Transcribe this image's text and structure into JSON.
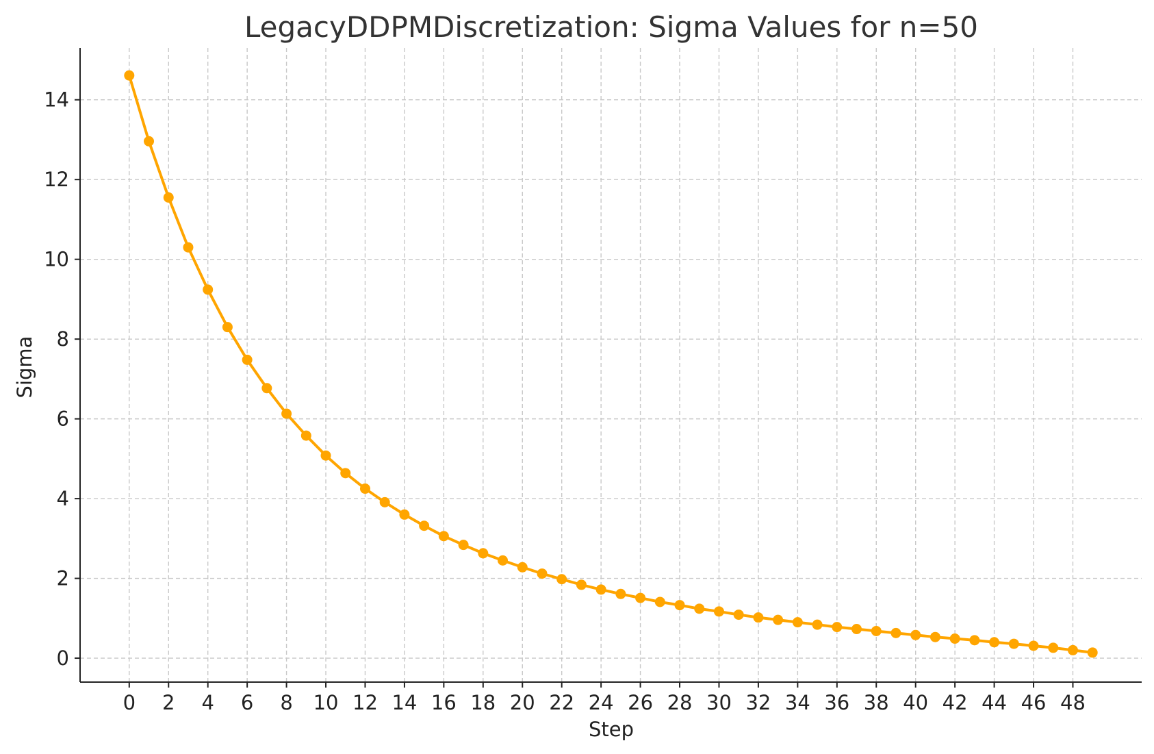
{
  "chart_data": {
    "type": "line",
    "title": "LegacyDDPMDiscretization: Sigma Values for n=50",
    "xlabel": "Step",
    "ylabel": "Sigma",
    "xlim": [
      -2.5,
      51.5
    ],
    "ylim": [
      -0.6,
      15.3
    ],
    "x_ticks": [
      0,
      2,
      4,
      6,
      8,
      10,
      12,
      14,
      16,
      18,
      20,
      22,
      24,
      26,
      28,
      30,
      32,
      34,
      36,
      38,
      40,
      42,
      44,
      46,
      48
    ],
    "y_ticks": [
      0,
      2,
      4,
      6,
      8,
      10,
      12,
      14
    ],
    "grid": true,
    "line_color": "#FFA500",
    "series": [
      {
        "x": [
          0,
          1,
          2,
          3,
          4,
          5,
          6,
          7,
          8,
          9,
          10,
          11,
          12,
          13,
          14,
          15,
          16,
          17,
          18,
          19,
          20,
          21,
          22,
          23,
          24,
          25,
          26,
          27,
          28,
          29,
          30,
          31,
          32,
          33,
          34,
          35,
          36,
          37,
          38,
          39,
          40,
          41,
          42,
          43,
          44,
          45,
          46,
          47,
          48,
          49
        ],
        "values": [
          14.61,
          12.96,
          11.55,
          10.3,
          9.24,
          8.3,
          7.48,
          6.77,
          6.13,
          5.58,
          5.08,
          4.64,
          4.25,
          3.91,
          3.6,
          3.32,
          3.06,
          2.84,
          2.63,
          2.45,
          2.28,
          2.12,
          1.98,
          1.84,
          1.72,
          1.61,
          1.51,
          1.41,
          1.33,
          1.24,
          1.17,
          1.09,
          1.02,
          0.96,
          0.9,
          0.84,
          0.78,
          0.73,
          0.68,
          0.63,
          0.58,
          0.53,
          0.49,
          0.45,
          0.4,
          0.36,
          0.31,
          0.26,
          0.2,
          0.14
        ]
      }
    ]
  }
}
